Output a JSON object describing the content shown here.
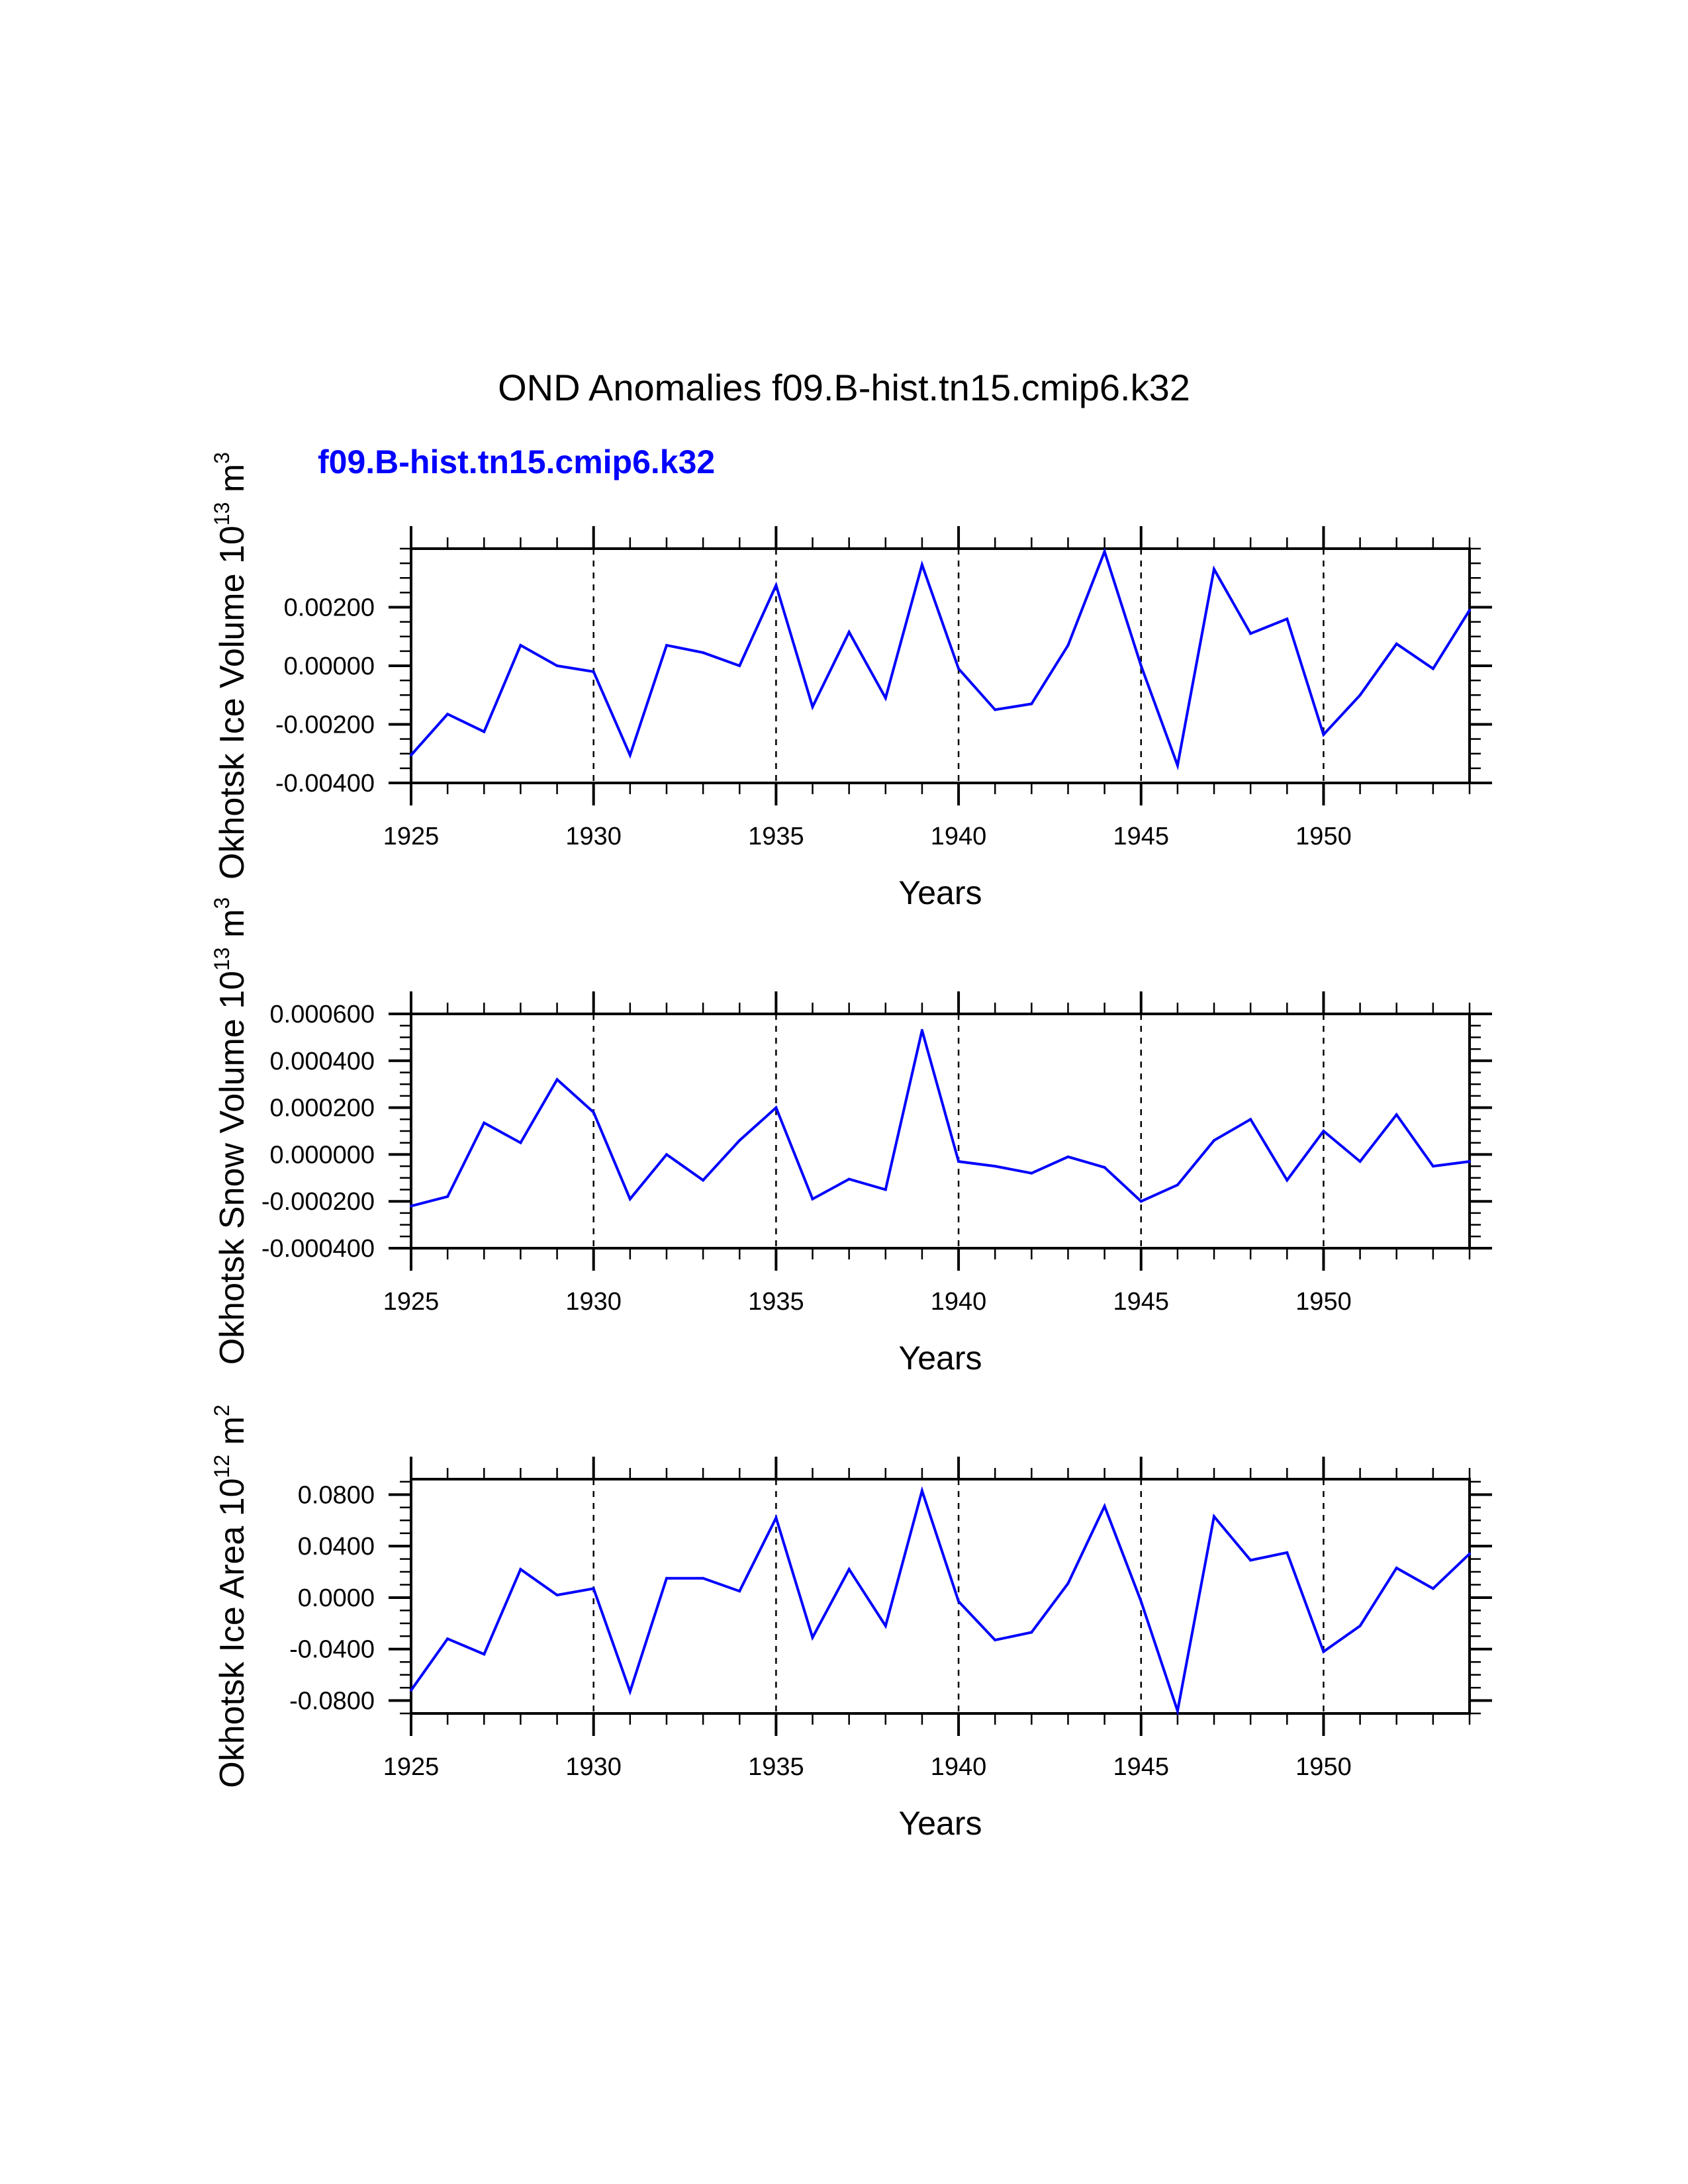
{
  "title": "OND Anomalies f09.B-hist.tn15.cmip6.k32",
  "subtitle": "f09.B-hist.tn15.cmip6.k32",
  "series_color": "#0000ff",
  "chart_data": [
    {
      "type": "line",
      "ylabel": {
        "main": "Okhotsk Ice Volume 10",
        "exp": "13",
        "unit": " m",
        "unit_exp": "3"
      },
      "xlabel": "Years",
      "xlim": [
        1925,
        1954
      ],
      "ylim": [
        -0.004,
        0.004
      ],
      "x_ticks": [
        1925,
        1930,
        1935,
        1940,
        1945,
        1950
      ],
      "x_tick_labels": [
        "1925",
        "1930",
        "1935",
        "1940",
        "1945",
        "1950"
      ],
      "y_ticks": [
        -0.004,
        -0.002,
        0.0,
        0.002
      ],
      "y_tick_labels": [
        "-0.00400",
        "-0.00200",
        "0.00000",
        "0.00200"
      ],
      "y_minor_step": 0.0005,
      "grid": "dashed vertical at major x ticks",
      "x": [
        1925,
        1926,
        1927,
        1928,
        1929,
        1930,
        1931,
        1932,
        1933,
        1934,
        1935,
        1936,
        1937,
        1938,
        1939,
        1940,
        1941,
        1942,
        1943,
        1944,
        1945,
        1946,
        1947,
        1948,
        1949,
        1950,
        1951,
        1952,
        1953,
        1954
      ],
      "values": [
        -0.00305,
        -0.00165,
        -0.00225,
        0.0007,
        0.0,
        -0.0002,
        -0.00305,
        0.0007,
        0.00045,
        0.0,
        0.00275,
        -0.0014,
        0.00115,
        -0.0011,
        0.00345,
        -0.0001,
        -0.0015,
        -0.0013,
        0.0007,
        0.0039,
        0.0,
        -0.0034,
        0.0033,
        0.0011,
        0.0016,
        -0.00235,
        -0.001,
        0.00075,
        -0.0001,
        0.0019
      ]
    },
    {
      "type": "line",
      "ylabel": {
        "main": "Okhotsk Snow Volume 10",
        "exp": "13",
        "unit": " m",
        "unit_exp": "3"
      },
      "xlabel": "Years",
      "xlim": [
        1925,
        1954
      ],
      "ylim": [
        -0.0004,
        0.0006
      ],
      "x_ticks": [
        1925,
        1930,
        1935,
        1940,
        1945,
        1950
      ],
      "x_tick_labels": [
        "1925",
        "1930",
        "1935",
        "1940",
        "1945",
        "1950"
      ],
      "y_ticks": [
        -0.0004,
        -0.0002,
        0.0,
        0.0002,
        0.0004,
        0.0006
      ],
      "y_tick_labels": [
        "-0.000400",
        "-0.000200",
        "0.000000",
        "0.000200",
        "0.000400",
        "0.000600"
      ],
      "y_minor_step": 5e-05,
      "grid": "dashed vertical at major x ticks",
      "x": [
        1925,
        1926,
        1927,
        1928,
        1929,
        1930,
        1931,
        1932,
        1933,
        1934,
        1935,
        1936,
        1937,
        1938,
        1939,
        1940,
        1941,
        1942,
        1943,
        1944,
        1945,
        1946,
        1947,
        1948,
        1949,
        1950,
        1951,
        1952,
        1953,
        1954
      ],
      "values": [
        -0.00022,
        -0.00018,
        0.000135,
        5e-05,
        0.00032,
        0.00018,
        -0.00019,
        0.0,
        -0.00011,
        6e-05,
        0.0002,
        -0.00019,
        -0.000105,
        -0.00015,
        0.00053,
        -3e-05,
        -5e-05,
        -8e-05,
        -1e-05,
        -5.5e-05,
        -0.0002,
        -0.00013,
        6e-05,
        0.00015,
        -0.00011,
        0.0001,
        -3e-05,
        0.00017,
        -5e-05,
        -3e-05
      ]
    },
    {
      "type": "line",
      "ylabel": {
        "main": "Okhotsk Ice Area 10",
        "exp": "12",
        "unit": " m",
        "unit_exp": "2"
      },
      "xlabel": "Years",
      "xlim": [
        1925,
        1954
      ],
      "ylim": [
        -0.09,
        0.092
      ],
      "x_ticks": [
        1925,
        1930,
        1935,
        1940,
        1945,
        1950
      ],
      "x_tick_labels": [
        "1925",
        "1930",
        "1935",
        "1940",
        "1945",
        "1950"
      ],
      "y_ticks": [
        -0.08,
        -0.04,
        0.0,
        0.04,
        0.08
      ],
      "y_tick_labels": [
        "-0.0800",
        "-0.0400",
        "0.0000",
        "0.0400",
        "0.0800"
      ],
      "y_minor_step": 0.01,
      "grid": "dashed vertical at major x ticks",
      "x": [
        1925,
        1926,
        1927,
        1928,
        1929,
        1930,
        1931,
        1932,
        1933,
        1934,
        1935,
        1936,
        1937,
        1938,
        1939,
        1940,
        1941,
        1942,
        1943,
        1944,
        1945,
        1946,
        1947,
        1948,
        1949,
        1950,
        1951,
        1952,
        1953,
        1954
      ],
      "values": [
        -0.072,
        -0.032,
        -0.044,
        0.022,
        0.002,
        0.007,
        -0.073,
        0.015,
        0.015,
        0.005,
        0.062,
        -0.031,
        0.022,
        -0.022,
        0.083,
        -0.003,
        -0.033,
        -0.027,
        0.011,
        0.071,
        -0.003,
        -0.088,
        0.063,
        0.029,
        0.035,
        -0.042,
        -0.022,
        0.023,
        0.007,
        0.034
      ]
    }
  ]
}
